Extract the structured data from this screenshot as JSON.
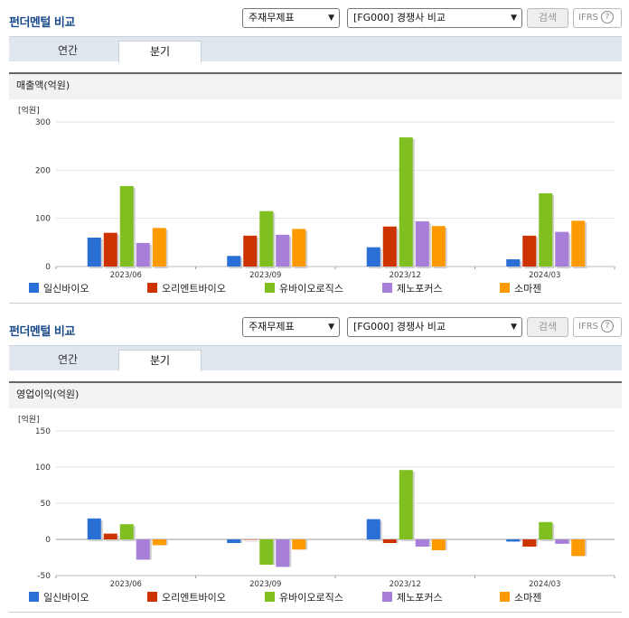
{
  "header": {
    "title": "펀더멘털 비교",
    "select1": "주재무제표",
    "select2": "[FG000] 경쟁사 비교",
    "search_label": "검색",
    "ifrs_label": "IFRS",
    "ifrs_help": "?"
  },
  "tabs": [
    {
      "label": "연간"
    },
    {
      "label": "분기"
    }
  ],
  "colors": {
    "일신바이오": "#2a6fd6",
    "오리엔트바이오": "#cc3300",
    "유바이오로직스": "#7fbf1f",
    "제노포커스": "#a77fd9",
    "소마젠": "#ff9900"
  },
  "chart_data": [
    {
      "type": "bar",
      "title": "매출액(억원)",
      "unit": "[억원]",
      "categories": [
        "2023/06",
        "2023/09",
        "2023/12",
        "2024/03"
      ],
      "ylim": [
        0,
        300
      ],
      "yticks": [
        "0",
        "100",
        "200",
        "300"
      ],
      "ytick_values": [
        0,
        100,
        200,
        300
      ],
      "grid": true,
      "legend": "bottom",
      "series": [
        {
          "name": "일신바이오",
          "values": [
            60,
            22,
            40,
            15
          ]
        },
        {
          "name": "오리엔트바이오",
          "values": [
            70,
            64,
            83,
            64
          ]
        },
        {
          "name": "유바이오로직스",
          "values": [
            167,
            115,
            268,
            152
          ]
        },
        {
          "name": "제노포커스",
          "values": [
            49,
            66,
            94,
            72
          ]
        },
        {
          "name": "소마젠",
          "values": [
            80,
            78,
            84,
            95
          ]
        }
      ]
    },
    {
      "type": "bar",
      "title": "영업이익(억원)",
      "unit": "[억원]",
      "categories": [
        "2023/06",
        "2023/09",
        "2023/12",
        "2024/03"
      ],
      "ylim": [
        -50,
        150
      ],
      "yticks": [
        "-50",
        "0",
        "50",
        "100",
        "150"
      ],
      "ytick_values": [
        -50,
        0,
        50,
        100,
        150
      ],
      "grid": true,
      "legend": "bottom",
      "series": [
        {
          "name": "일신바이오",
          "values": [
            29,
            -5,
            28,
            -3
          ]
        },
        {
          "name": "오리엔트바이오",
          "values": [
            8,
            0,
            -5,
            -10
          ]
        },
        {
          "name": "유바이오로직스",
          "values": [
            21,
            -35,
            96,
            24
          ]
        },
        {
          "name": "제노포커스",
          "values": [
            -28,
            -38,
            -10,
            -6
          ]
        },
        {
          "name": "소마젠",
          "values": [
            -8,
            -14,
            -15,
            -23
          ]
        }
      ]
    }
  ]
}
